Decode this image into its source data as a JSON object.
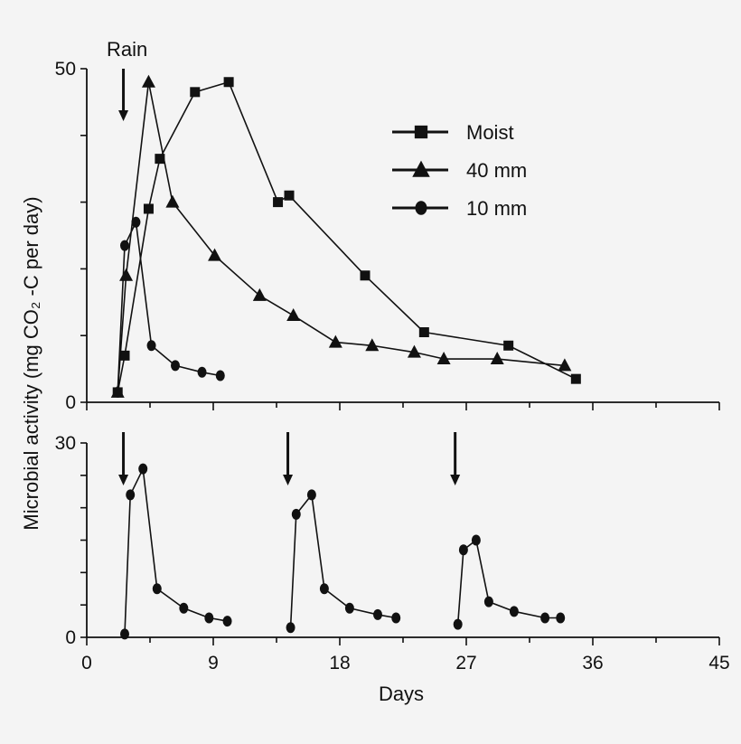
{
  "chart_data": [
    {
      "type": "line",
      "panel": "top",
      "xlabel": "",
      "ylabel": "",
      "xlim": [
        0,
        45
      ],
      "ylim": [
        0,
        50
      ],
      "y_ticks": [
        0,
        50
      ],
      "annotations": [
        {
          "text": "Rain",
          "x": 2.8
        }
      ],
      "rain_arrows_x": [
        2.8
      ],
      "legend": {
        "position": "top-right"
      },
      "series": [
        {
          "name": "Moist",
          "marker": "square",
          "x": [
            2.2,
            2.7,
            4.4,
            5.2,
            7.7,
            10.1,
            13.6,
            14.4,
            19.8,
            24.0,
            30.0,
            34.8
          ],
          "y": [
            1.5,
            7.0,
            29.0,
            36.5,
            46.5,
            48.0,
            30.0,
            31.0,
            19.0,
            10.5,
            8.5,
            3.5
          ]
        },
        {
          "name": "40 mm",
          "marker": "triangle",
          "x": [
            2.2,
            2.8,
            4.4,
            6.1,
            9.1,
            12.3,
            14.7,
            17.7,
            20.3,
            23.3,
            25.4,
            29.2,
            34.0
          ],
          "y": [
            1.5,
            19.0,
            48.0,
            30.0,
            22.0,
            16.0,
            13.0,
            9.0,
            8.5,
            7.5,
            6.5,
            6.5,
            5.5
          ]
        },
        {
          "name": "10 mm",
          "marker": "circle",
          "x": [
            2.2,
            2.7,
            3.5,
            4.6,
            6.3,
            8.2,
            9.5
          ],
          "y": [
            1.5,
            23.5,
            27.0,
            8.5,
            5.5,
            4.5,
            4.0
          ]
        }
      ]
    },
    {
      "type": "line",
      "panel": "bottom",
      "xlabel": "Days",
      "ylabel": "Microbial activity (mg CO₂ -C per day)",
      "xlim": [
        0,
        45
      ],
      "ylim": [
        0,
        30
      ],
      "x_ticks": [
        0,
        9,
        18,
        27,
        36,
        45
      ],
      "y_ticks": [
        0,
        30
      ],
      "rain_arrows_x": [
        2.8,
        14.5,
        26.4
      ],
      "series": [
        {
          "name": "",
          "marker": "circle",
          "pulses": [
            {
              "x": [
                2.7,
                3.1,
                4.0,
                5.0,
                6.9,
                8.7,
                10.0
              ],
              "y": [
                0.5,
                22.0,
                26.0,
                7.5,
                4.5,
                3.0,
                2.5
              ]
            },
            {
              "x": [
                14.5,
                14.9,
                16.0,
                16.9,
                18.7,
                20.7,
                22.0
              ],
              "y": [
                1.5,
                19.0,
                22.0,
                7.5,
                4.5,
                3.5,
                3.0
              ]
            },
            {
              "x": [
                26.4,
                26.8,
                27.7,
                28.6,
                30.4,
                32.6,
                33.7
              ],
              "y": [
                2.0,
                13.5,
                15.0,
                5.5,
                4.0,
                3.0,
                3.0
              ]
            }
          ]
        }
      ]
    }
  ]
}
